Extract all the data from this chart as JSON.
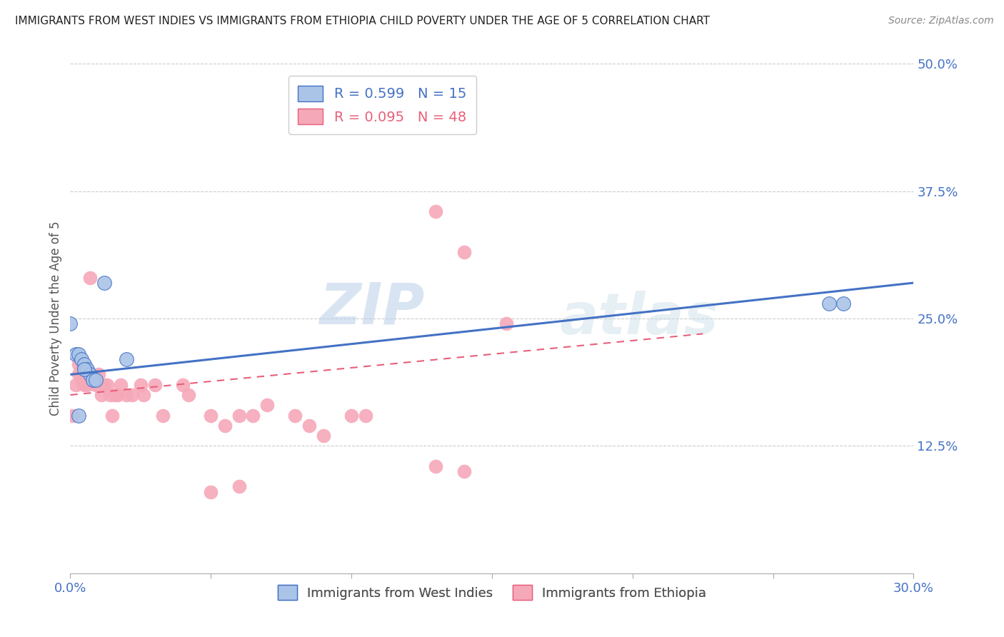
{
  "title": "IMMIGRANTS FROM WEST INDIES VS IMMIGRANTS FROM ETHIOPIA CHILD POVERTY UNDER THE AGE OF 5 CORRELATION CHART",
  "source": "Source: ZipAtlas.com",
  "ylabel": "Child Poverty Under the Age of 5",
  "x_min": 0.0,
  "x_max": 0.3,
  "y_min": 0.0,
  "y_max": 0.5,
  "x_ticks": [
    0.0,
    0.05,
    0.1,
    0.15,
    0.2,
    0.25,
    0.3
  ],
  "y_ticks_right": [
    0.0,
    0.125,
    0.25,
    0.375,
    0.5
  ],
  "y_tick_labels_right": [
    "",
    "12.5%",
    "25.0%",
    "37.5%",
    "50.0%"
  ],
  "color_westindies": "#aac4e8",
  "color_ethiopia": "#f5a8b8",
  "color_line_westindies": "#4472c4",
  "color_line_ethiopia": "#e8607a",
  "color_axis_labels": "#4472c4",
  "west_indies_x": [
    0.0,
    0.002,
    0.003,
    0.004,
    0.005,
    0.006,
    0.007,
    0.008,
    0.009,
    0.012,
    0.02,
    0.27,
    0.275,
    0.003,
    0.005
  ],
  "west_indies_y": [
    0.245,
    0.215,
    0.215,
    0.21,
    0.205,
    0.2,
    0.195,
    0.19,
    0.19,
    0.285,
    0.21,
    0.265,
    0.265,
    0.155,
    0.2
  ],
  "ethiopia_x": [
    0.001,
    0.002,
    0.003,
    0.003,
    0.004,
    0.004,
    0.005,
    0.005,
    0.006,
    0.007,
    0.007,
    0.008,
    0.009,
    0.01,
    0.01,
    0.011,
    0.012,
    0.013,
    0.014,
    0.015,
    0.016,
    0.017,
    0.018,
    0.02,
    0.022,
    0.025,
    0.026,
    0.03,
    0.033,
    0.04,
    0.042,
    0.05,
    0.055,
    0.06,
    0.065,
    0.07,
    0.08,
    0.085,
    0.09,
    0.1,
    0.105,
    0.13,
    0.14,
    0.155,
    0.05,
    0.06,
    0.13,
    0.14
  ],
  "ethiopia_y": [
    0.155,
    0.185,
    0.205,
    0.195,
    0.2,
    0.19,
    0.195,
    0.185,
    0.185,
    0.195,
    0.29,
    0.19,
    0.185,
    0.195,
    0.185,
    0.175,
    0.185,
    0.185,
    0.175,
    0.155,
    0.175,
    0.175,
    0.185,
    0.175,
    0.175,
    0.185,
    0.175,
    0.185,
    0.155,
    0.185,
    0.175,
    0.155,
    0.145,
    0.155,
    0.155,
    0.165,
    0.155,
    0.145,
    0.135,
    0.155,
    0.155,
    0.355,
    0.315,
    0.245,
    0.08,
    0.085,
    0.105,
    0.1
  ],
  "wi_line_x": [
    0.0,
    0.3
  ],
  "wi_line_y": [
    0.195,
    0.285
  ],
  "et_line_x": [
    0.0,
    0.225
  ],
  "et_line_y": [
    0.175,
    0.235
  ]
}
